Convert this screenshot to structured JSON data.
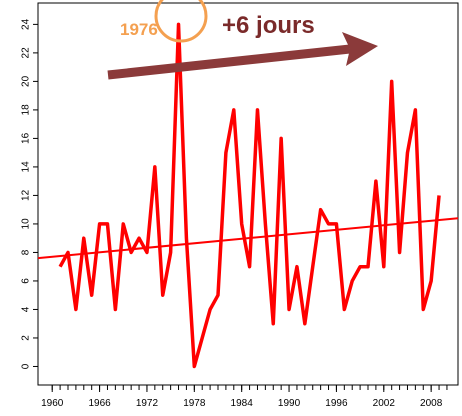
{
  "chart_data": {
    "type": "line",
    "x": [
      1961,
      1962,
      1963,
      1964,
      1965,
      1966,
      1967,
      1968,
      1969,
      1970,
      1971,
      1972,
      1973,
      1974,
      1975,
      1976,
      1977,
      1978,
      1979,
      1980,
      1981,
      1982,
      1983,
      1984,
      1985,
      1986,
      1987,
      1988,
      1989,
      1990,
      1991,
      1992,
      1993,
      1994,
      1995,
      1996,
      1997,
      1998,
      1999,
      2000,
      2001,
      2002,
      2003,
      2004,
      2005,
      2006,
      2007,
      2008,
      2009
    ],
    "series": [
      {
        "color": "#ff0000",
        "values": [
          7,
          8,
          4,
          9,
          5,
          10,
          10,
          4,
          10,
          8,
          9,
          8,
          14,
          5,
          8,
          24,
          9,
          0,
          2,
          4,
          5,
          15,
          18,
          10,
          7,
          18,
          10,
          3,
          16,
          4,
          7,
          3,
          7,
          11,
          10,
          10,
          4,
          6,
          7,
          7,
          13,
          7,
          20,
          8,
          15,
          18,
          4,
          6,
          12
        ]
      }
    ],
    "trend": {
      "color": "#ff0000",
      "x": [
        1958.2,
        2011.4
      ],
      "values": [
        7.6,
        10.4
      ]
    },
    "xlim": [
      1958.2,
      2011.4
    ],
    "xticks": [
      1960,
      1966,
      1972,
      1978,
      1984,
      1990,
      1996,
      2002,
      2008
    ],
    "xminorticks": [
      1960,
      1961,
      1962,
      1963,
      1964,
      1965,
      1966,
      1967,
      1968,
      1969,
      1970,
      1971,
      1972,
      1973,
      1974,
      1975,
      1976,
      1977,
      1978,
      1979,
      1980,
      1981,
      1982,
      1983,
      1984,
      1985,
      1986,
      1987,
      1988,
      1989,
      1990,
      1991,
      1992,
      1993,
      1994,
      1995,
      1996,
      1997,
      1998,
      1999,
      2000,
      2001,
      2002,
      2003,
      2004,
      2005,
      2006,
      2007,
      2008,
      2009,
      2010
    ],
    "ylim": [
      -1.3,
      25.5
    ],
    "yticks": [
      0,
      2,
      4,
      6,
      8,
      10,
      12,
      14,
      16,
      18,
      20,
      22,
      24
    ],
    "annotations": [
      {
        "text": "1976",
        "color": "#f4a050"
      },
      {
        "text": "+6 jours",
        "color": "#7a2a2a"
      }
    ]
  }
}
